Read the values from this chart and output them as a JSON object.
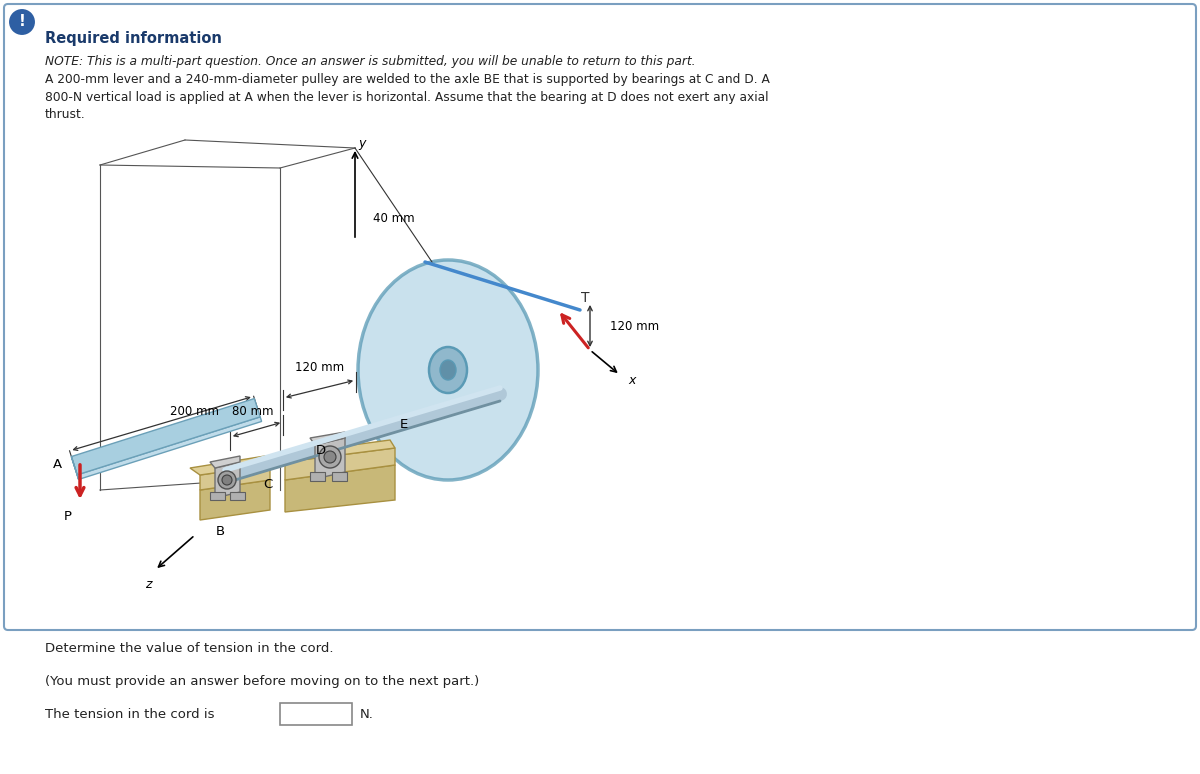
{
  "bg_color": "#ffffff",
  "box_edge_color": "#7a9fc0",
  "icon_color": "#2e5fa3",
  "required_info_color": "#1a3a6b",
  "text_color": "#222222",
  "title": "Required information",
  "note_italic": "NOTE: This is a multi-part question. Once an answer is submitted, you will be unable to return to this part.",
  "note_line2": "A 200-mm lever and a 240-mm-diameter pulley are welded to the axle BE that is supported by bearings at C and D. A",
  "note_line3": "800-N vertical load is applied at A when the lever is horizontal. Assume that the bearing at D does not exert any axial",
  "note_line4": "thrust.",
  "question": "Determine the value of tension in the cord.",
  "instruction": "(You must provide an answer before moving on to the next part.)",
  "answer_prefix": "The tension in the cord is",
  "answer_suffix": "N.",
  "dim_200mm": "200 mm",
  "dim_80mm": "80 mm",
  "dim_120mm_top": "120 mm",
  "dim_40mm": "40 mm",
  "dim_120mm_right": "120 mm",
  "label_A": "A",
  "label_B": "B",
  "label_C": "C",
  "label_D": "D",
  "label_E": "E",
  "label_P": "P",
  "label_T": "T",
  "label_x": "x",
  "label_y": "y",
  "label_z": "z",
  "lever_color": "#a8cfe0",
  "lever_edge": "#6ba0b8",
  "pulley_fill": "#b8d8e8",
  "pulley_edge": "#5a9ab5",
  "axle_color": "#b0c8d8",
  "axle_dark": "#7090a0",
  "bearing_light": "#c8c8c8",
  "bearing_dark": "#888888",
  "base_color": "#c8b878",
  "base_dark": "#a89040",
  "arrow_red": "#cc2222",
  "cord_color": "#4488cc",
  "dim_line_color": "#333333",
  "dim_arrow_color": "#333333"
}
